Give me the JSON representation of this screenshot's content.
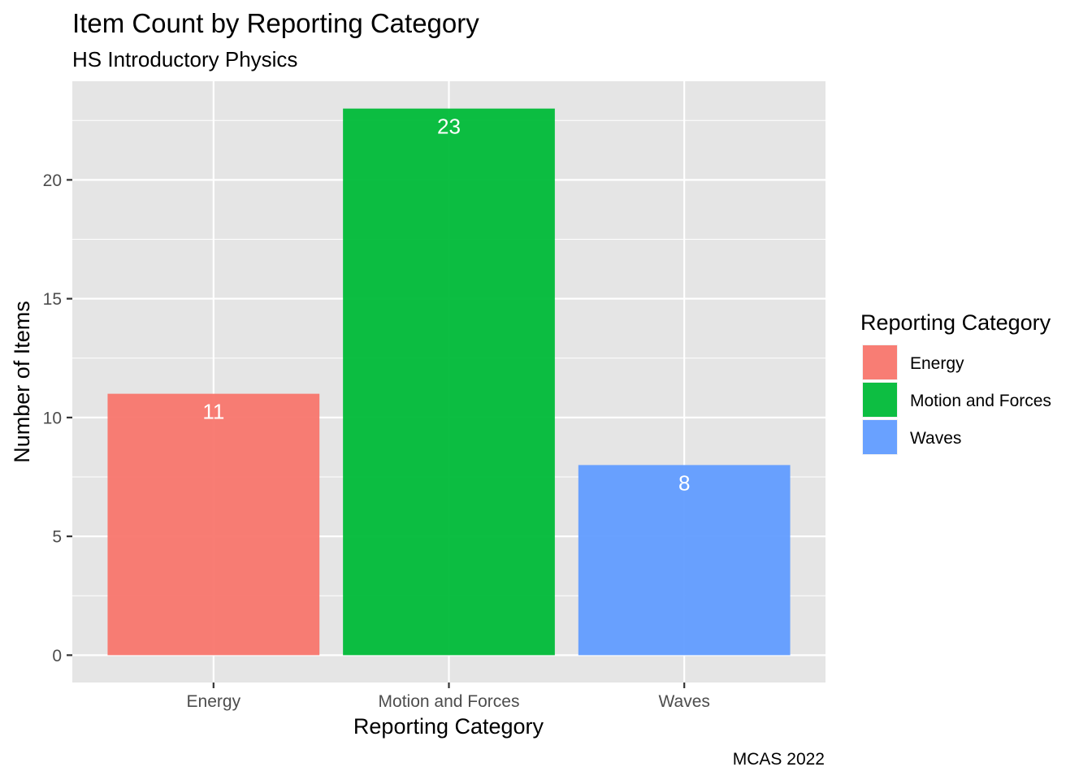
{
  "chart_data": {
    "type": "bar",
    "title": "Item Count by Reporting Category",
    "subtitle": "HS Introductory Physics",
    "xlabel": "Reporting Category",
    "ylabel": "Number of Items",
    "caption": "MCAS 2022",
    "categories": [
      "Energy",
      "Motion and Forces",
      "Waves"
    ],
    "values": [
      11,
      23,
      8
    ],
    "data_labels": [
      "11",
      "23",
      "8"
    ],
    "colors": [
      "#F8766D",
      "#00BA38",
      "#619CFF"
    ],
    "ylim": [
      -1.15,
      24.15
    ],
    "y_ticks": [
      0,
      5,
      10,
      15,
      20
    ],
    "y_tick_labels": [
      "0",
      "5",
      "10",
      "15",
      "20"
    ],
    "grid": true,
    "panel_background": "#E5E5E5",
    "legend": {
      "title": "Reporting Category",
      "position": "right",
      "entries": [
        "Energy",
        "Motion and Forces",
        "Waves"
      ]
    }
  }
}
